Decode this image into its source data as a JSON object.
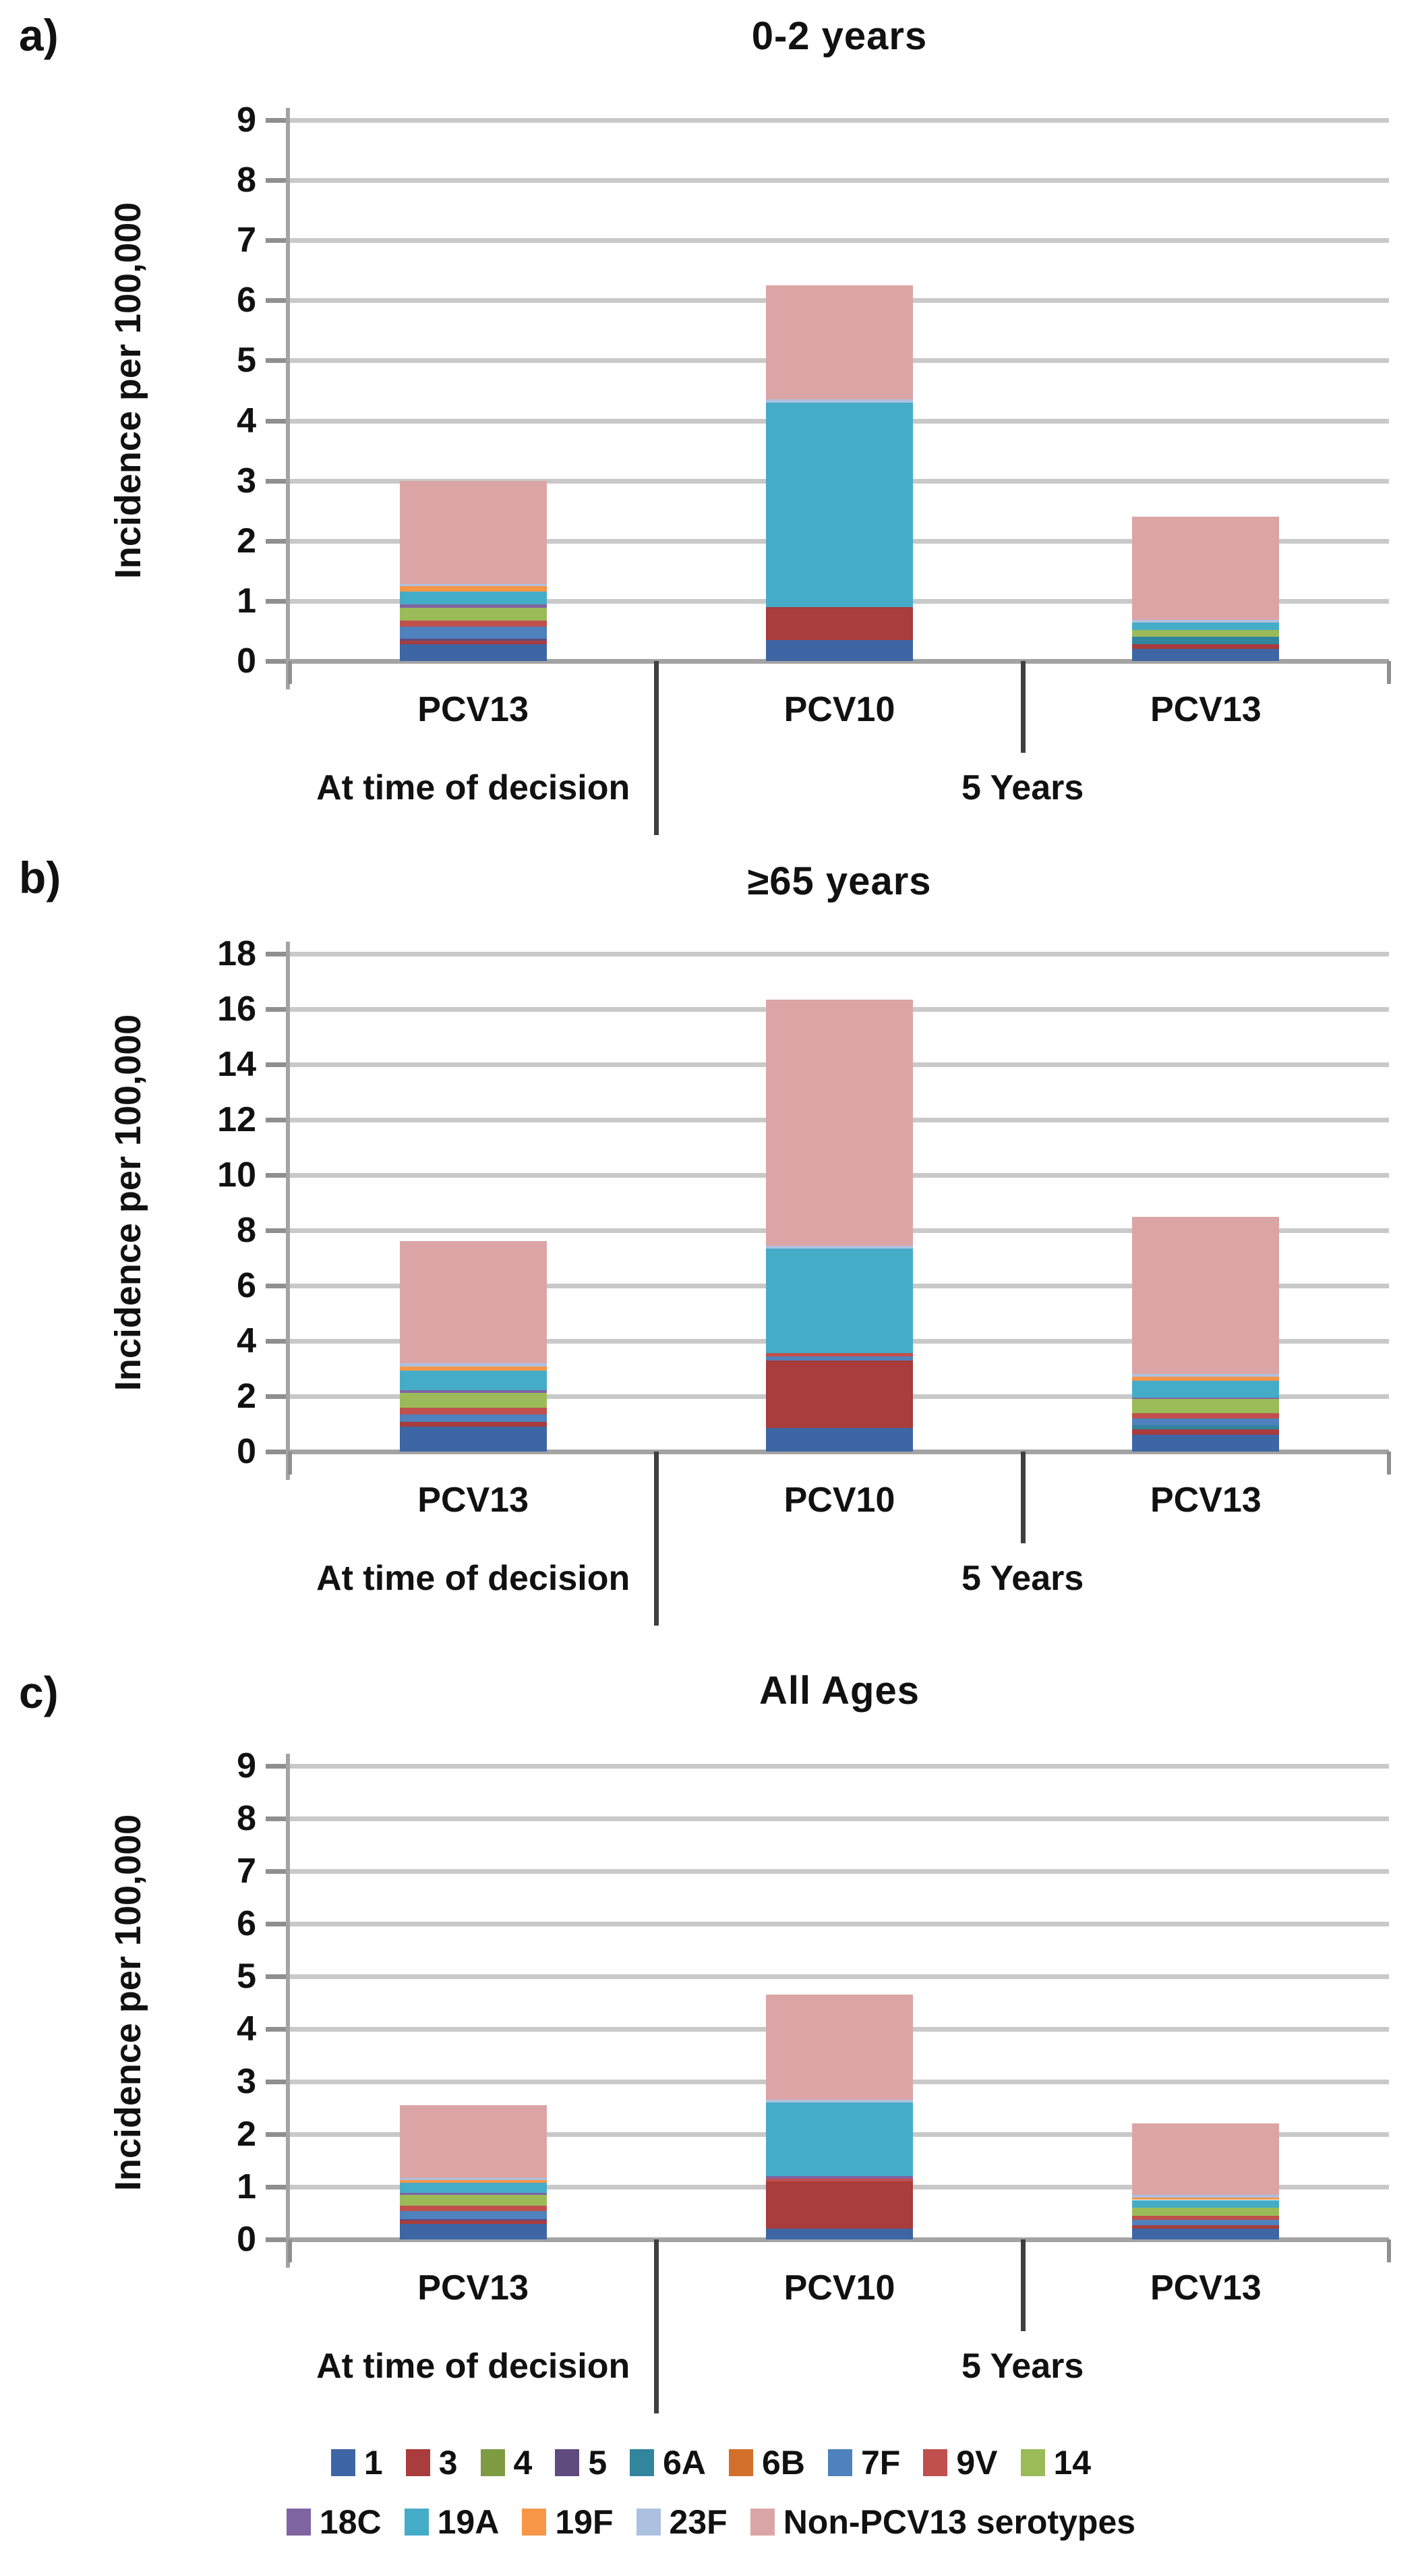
{
  "panel_labels": [
    "a)",
    "b)",
    "c)"
  ],
  "serotypes": [
    {
      "label": "1",
      "color": "#3E66A5"
    },
    {
      "label": "3",
      "color": "#A93C3C"
    },
    {
      "label": "4",
      "color": "#7E9B44"
    },
    {
      "label": "5",
      "color": "#5F4B7E"
    },
    {
      "label": "6A",
      "color": "#31859C"
    },
    {
      "label": "6B",
      "color": "#D2702B"
    },
    {
      "label": "7F",
      "color": "#4F81BD"
    },
    {
      "label": "9V",
      "color": "#C0504D"
    },
    {
      "label": "14",
      "color": "#9BBB59"
    },
    {
      "label": "18C",
      "color": "#8064A2"
    },
    {
      "label": "19A",
      "color": "#45ACC8"
    },
    {
      "label": "19F",
      "color": "#F79646"
    },
    {
      "label": "23F",
      "color": "#ACC0E0"
    },
    {
      "label": "Non-PCV13 serotypes",
      "color": "#DBA5A6"
    }
  ],
  "legend": {
    "row1_count": 9
  },
  "chart_data": [
    {
      "type": "bar",
      "stacked": true,
      "title": "0-2 years",
      "ylabel": "Incidence per 100,000",
      "xlabel": "",
      "ylim": [
        0,
        9
      ],
      "ytick_step": 1,
      "grid": true,
      "categories": [
        "PCV13",
        "PCV10",
        "PCV13"
      ],
      "group_labels": [
        "At time of decision",
        "5 Years"
      ],
      "totals": [
        3.0,
        6.25,
        2.4
      ],
      "series": [
        {
          "name": "1",
          "values": [
            0.28,
            0.35,
            0.2
          ]
        },
        {
          "name": "3",
          "values": [
            0.06,
            0.55,
            0.08
          ]
        },
        {
          "name": "4",
          "values": [
            0,
            0,
            0
          ]
        },
        {
          "name": "5",
          "values": [
            0.03,
            0,
            0
          ]
        },
        {
          "name": "6A",
          "values": [
            0,
            0,
            0.12
          ]
        },
        {
          "name": "6B",
          "values": [
            0,
            0,
            0
          ]
        },
        {
          "name": "7F",
          "values": [
            0.2,
            0,
            0
          ]
        },
        {
          "name": "9V",
          "values": [
            0.1,
            0,
            0
          ]
        },
        {
          "name": "14",
          "values": [
            0.22,
            0,
            0.12
          ]
        },
        {
          "name": "18C",
          "values": [
            0.05,
            0,
            0
          ]
        },
        {
          "name": "19A",
          "values": [
            0.22,
            3.4,
            0.12
          ]
        },
        {
          "name": "19F",
          "values": [
            0.09,
            0,
            0
          ]
        },
        {
          "name": "23F",
          "values": [
            0.03,
            0.05,
            0.04
          ]
        },
        {
          "name": "Non-PCV13 serotypes",
          "values": [
            1.72,
            1.9,
            1.72
          ]
        }
      ]
    },
    {
      "type": "bar",
      "stacked": true,
      "title": "≥65 years",
      "ylabel": "Incidence per 100,000",
      "xlabel": "",
      "ylim": [
        0,
        18
      ],
      "ytick_step": 2,
      "grid": true,
      "categories": [
        "PCV13",
        "PCV10",
        "PCV13"
      ],
      "group_labels": [
        "At time of decision",
        "5 Years"
      ],
      "totals": [
        7.6,
        16.35,
        8.5
      ],
      "series": [
        {
          "name": "1",
          "values": [
            0.9,
            0.85,
            0.6
          ]
        },
        {
          "name": "3",
          "values": [
            0.18,
            2.45,
            0.2
          ]
        },
        {
          "name": "4",
          "values": [
            0,
            0,
            0
          ]
        },
        {
          "name": "5",
          "values": [
            0,
            0,
            0
          ]
        },
        {
          "name": "6A",
          "values": [
            0,
            0,
            0.15
          ]
        },
        {
          "name": "6B",
          "values": [
            0,
            0,
            0
          ]
        },
        {
          "name": "7F",
          "values": [
            0.25,
            0.15,
            0.25
          ]
        },
        {
          "name": "9V",
          "values": [
            0.25,
            0.1,
            0.2
          ]
        },
        {
          "name": "14",
          "values": [
            0.55,
            0,
            0.5
          ]
        },
        {
          "name": "18C",
          "values": [
            0.1,
            0,
            0.05
          ]
        },
        {
          "name": "19A",
          "values": [
            0.7,
            3.8,
            0.6
          ]
        },
        {
          "name": "19F",
          "values": [
            0.15,
            0,
            0.15
          ]
        },
        {
          "name": "23F",
          "values": [
            0.12,
            0.1,
            0.1
          ]
        },
        {
          "name": "Non-PCV13 serotypes",
          "values": [
            4.4,
            8.9,
            5.7
          ]
        }
      ]
    },
    {
      "type": "bar",
      "stacked": true,
      "title": "All Ages",
      "ylabel": "Incidence per 100,000",
      "xlabel": "",
      "ylim": [
        0,
        9
      ],
      "ytick_step": 1,
      "grid": true,
      "categories": [
        "PCV13",
        "PCV10",
        "PCV13"
      ],
      "group_labels": [
        "At time of decision",
        "5 Years"
      ],
      "totals": [
        2.55,
        4.65,
        2.2
      ],
      "series": [
        {
          "name": "1",
          "values": [
            0.3,
            0.2,
            0.2
          ]
        },
        {
          "name": "3",
          "values": [
            0.06,
            0.9,
            0.07
          ]
        },
        {
          "name": "4",
          "values": [
            0,
            0,
            0
          ]
        },
        {
          "name": "5",
          "values": [
            0.03,
            0,
            0
          ]
        },
        {
          "name": "6A",
          "values": [
            0,
            0,
            0
          ]
        },
        {
          "name": "6B",
          "values": [
            0,
            0,
            0
          ]
        },
        {
          "name": "7F",
          "values": [
            0.15,
            0,
            0.1
          ]
        },
        {
          "name": "9V",
          "values": [
            0.1,
            0.05,
            0.08
          ]
        },
        {
          "name": "14",
          "values": [
            0.2,
            0,
            0.15
          ]
        },
        {
          "name": "18C",
          "values": [
            0.04,
            0.05,
            0
          ]
        },
        {
          "name": "19A",
          "values": [
            0.2,
            1.4,
            0.15
          ]
        },
        {
          "name": "19F",
          "values": [
            0.05,
            0,
            0.05
          ]
        },
        {
          "name": "23F",
          "values": [
            0.04,
            0.05,
            0.05
          ]
        },
        {
          "name": "Non-PCV13 serotypes",
          "values": [
            1.38,
            2.0,
            1.35
          ]
        }
      ]
    }
  ]
}
